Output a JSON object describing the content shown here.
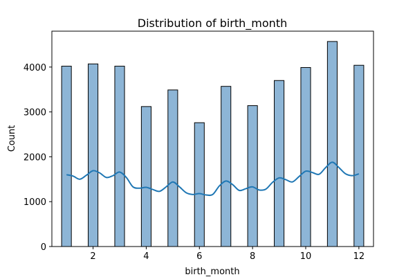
{
  "chart_data": {
    "type": "bar",
    "title": "Distribution of birth_month",
    "xlabel": "birth_month",
    "ylabel": "Count",
    "xlim": [
      0.45,
      12.55
    ],
    "ylim": [
      0,
      4800
    ],
    "xticks": [
      2,
      4,
      6,
      8,
      10,
      12
    ],
    "yticks": [
      0,
      1000,
      2000,
      3000,
      4000
    ],
    "bar_width": 0.3667,
    "categories": [
      1,
      2,
      3,
      4,
      5,
      6,
      7,
      8,
      9,
      10,
      11,
      12
    ],
    "values": [
      4020,
      4070,
      4020,
      3120,
      3490,
      2760,
      3570,
      3140,
      3700,
      3990,
      4570,
      4040
    ],
    "kde_curve": {
      "x": [
        1.0,
        1.25,
        1.5,
        1.75,
        2.0,
        2.25,
        2.5,
        2.75,
        3.0,
        3.25,
        3.5,
        3.75,
        4.0,
        4.25,
        4.5,
        4.75,
        5.0,
        5.25,
        5.5,
        5.75,
        6.0,
        6.25,
        6.5,
        6.75,
        7.0,
        7.25,
        7.5,
        7.75,
        8.0,
        8.25,
        8.5,
        8.75,
        9.0,
        9.25,
        9.5,
        9.75,
        10.0,
        10.25,
        10.5,
        10.75,
        11.0,
        11.25,
        11.5,
        11.75,
        12.0
      ],
      "y": [
        1600,
        1570,
        1500,
        1590,
        1690,
        1640,
        1540,
        1580,
        1660,
        1540,
        1330,
        1300,
        1320,
        1270,
        1230,
        1330,
        1440,
        1330,
        1200,
        1160,
        1180,
        1150,
        1160,
        1350,
        1460,
        1380,
        1250,
        1290,
        1330,
        1260,
        1280,
        1430,
        1530,
        1490,
        1440,
        1560,
        1680,
        1650,
        1610,
        1760,
        1880,
        1760,
        1620,
        1580,
        1620
      ]
    },
    "colors": {
      "bar_fill": "#8db5d6",
      "bar_edge": "#000000",
      "line": "#1f77b4"
    },
    "grid": false,
    "legend": "none"
  }
}
